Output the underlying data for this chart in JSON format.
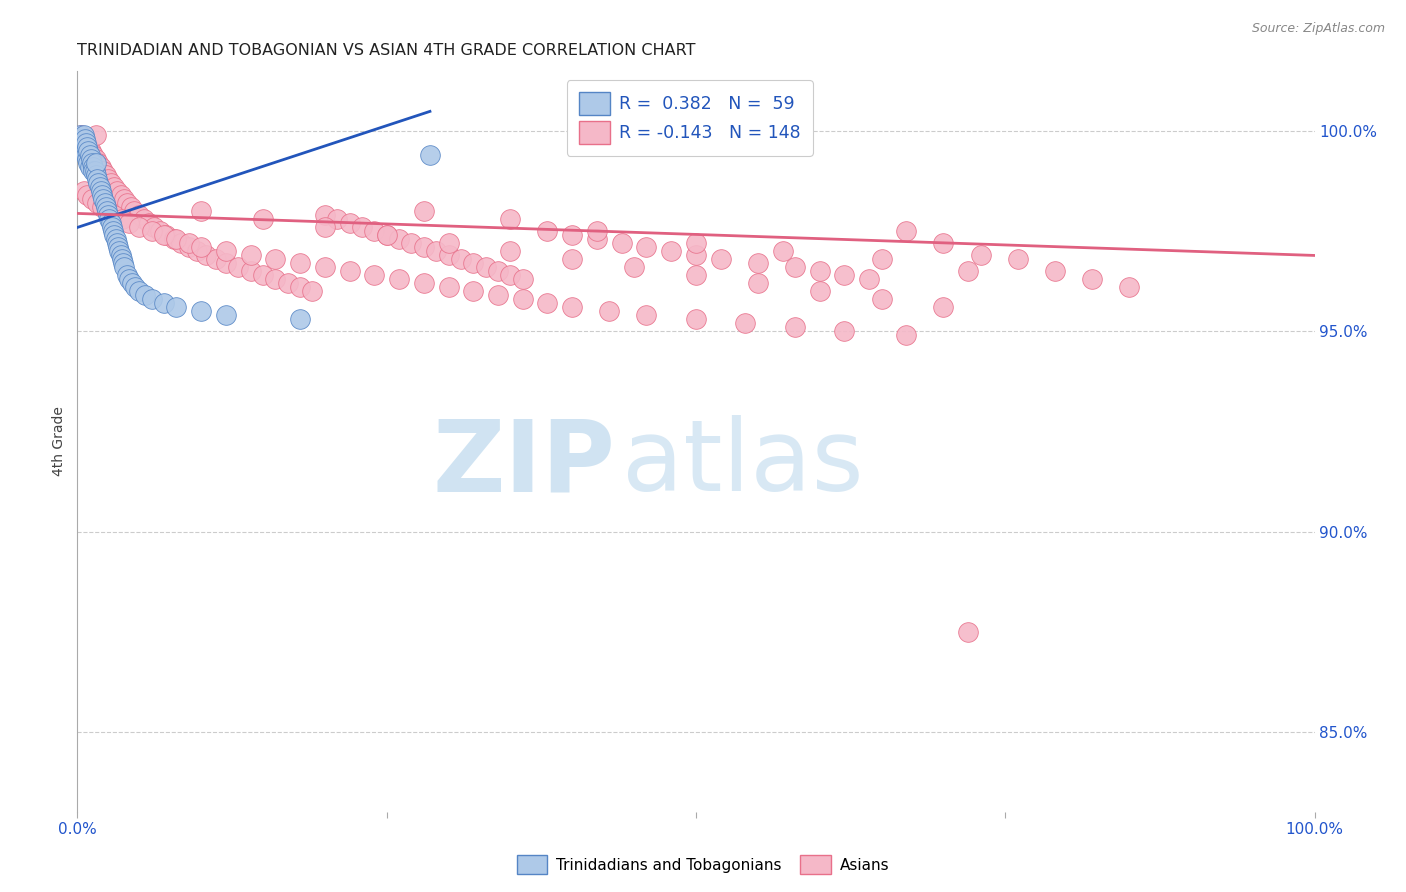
{
  "title": "TRINIDADIAN AND TOBAGONIAN VS ASIAN 4TH GRADE CORRELATION CHART",
  "source": "Source: ZipAtlas.com",
  "ylabel": "4th Grade",
  "r_blue": 0.382,
  "n_blue": 59,
  "r_pink": -0.143,
  "n_pink": 148,
  "legend_label_blue": "Trinidadians and Tobagonians",
  "legend_label_pink": "Asians",
  "blue_fill": "#aec9e8",
  "pink_fill": "#f5b8c8",
  "blue_edge": "#5585c5",
  "pink_edge": "#e8708a",
  "blue_line": "#2255bb",
  "pink_line": "#e06080",
  "axis_tick_color": "#2255cc",
  "title_color": "#222222",
  "source_color": "#888888",
  "ylabel_color": "#444444",
  "grid_color": "#cccccc",
  "xlim": [
    0.0,
    1.0
  ],
  "ylim": [
    0.83,
    1.015
  ],
  "ytick_vals": [
    1.0,
    0.95,
    0.9,
    0.85
  ],
  "ytick_labels": [
    "100.0%",
    "95.0%",
    "90.0%",
    "85.0%"
  ],
  "blue_trend_x": [
    0.0,
    0.285
  ],
  "blue_trend_y": [
    0.976,
    1.005
  ],
  "pink_trend_x": [
    0.0,
    1.0
  ],
  "pink_trend_y": [
    0.9795,
    0.969
  ],
  "blue_x": [
    0.002,
    0.003,
    0.004,
    0.004,
    0.005,
    0.005,
    0.006,
    0.006,
    0.007,
    0.007,
    0.008,
    0.008,
    0.009,
    0.009,
    0.01,
    0.01,
    0.011,
    0.012,
    0.013,
    0.013,
    0.014,
    0.015,
    0.015,
    0.016,
    0.017,
    0.018,
    0.019,
    0.02,
    0.021,
    0.022,
    0.023,
    0.024,
    0.025,
    0.026,
    0.027,
    0.028,
    0.029,
    0.03,
    0.031,
    0.032,
    0.033,
    0.034,
    0.035,
    0.036,
    0.037,
    0.038,
    0.04,
    0.042,
    0.044,
    0.047,
    0.05,
    0.055,
    0.06,
    0.07,
    0.08,
    0.1,
    0.12,
    0.18,
    0.285
  ],
  "blue_y": [
    0.999,
    0.998,
    0.997,
    0.996,
    0.999,
    0.997,
    0.998,
    0.995,
    0.997,
    0.994,
    0.996,
    0.993,
    0.995,
    0.992,
    0.994,
    0.991,
    0.993,
    0.992,
    0.991,
    0.99,
    0.99,
    0.989,
    0.992,
    0.988,
    0.987,
    0.986,
    0.985,
    0.984,
    0.983,
    0.982,
    0.981,
    0.98,
    0.979,
    0.978,
    0.977,
    0.976,
    0.975,
    0.974,
    0.973,
    0.972,
    0.971,
    0.97,
    0.969,
    0.968,
    0.967,
    0.966,
    0.964,
    0.963,
    0.962,
    0.961,
    0.96,
    0.959,
    0.958,
    0.957,
    0.956,
    0.955,
    0.954,
    0.953,
    0.994
  ],
  "pink_x": [
    0.003,
    0.004,
    0.005,
    0.005,
    0.006,
    0.007,
    0.008,
    0.008,
    0.009,
    0.01,
    0.011,
    0.012,
    0.013,
    0.014,
    0.015,
    0.015,
    0.016,
    0.017,
    0.018,
    0.019,
    0.02,
    0.021,
    0.022,
    0.023,
    0.025,
    0.027,
    0.03,
    0.032,
    0.035,
    0.038,
    0.04,
    0.043,
    0.046,
    0.05,
    0.054,
    0.058,
    0.062,
    0.067,
    0.072,
    0.078,
    0.084,
    0.09,
    0.097,
    0.104,
    0.112,
    0.12,
    0.13,
    0.14,
    0.15,
    0.16,
    0.17,
    0.18,
    0.19,
    0.2,
    0.21,
    0.22,
    0.23,
    0.24,
    0.25,
    0.26,
    0.27,
    0.28,
    0.29,
    0.3,
    0.31,
    0.32,
    0.33,
    0.34,
    0.35,
    0.36,
    0.38,
    0.4,
    0.42,
    0.44,
    0.46,
    0.48,
    0.5,
    0.52,
    0.55,
    0.58,
    0.6,
    0.62,
    0.64,
    0.67,
    0.7,
    0.73,
    0.76,
    0.79,
    0.82,
    0.85,
    0.1,
    0.15,
    0.2,
    0.25,
    0.3,
    0.35,
    0.4,
    0.45,
    0.5,
    0.55,
    0.6,
    0.65,
    0.7,
    0.28,
    0.35,
    0.42,
    0.5,
    0.57,
    0.65,
    0.72,
    0.005,
    0.008,
    0.012,
    0.016,
    0.02,
    0.025,
    0.03,
    0.036,
    0.042,
    0.05,
    0.06,
    0.07,
    0.08,
    0.09,
    0.1,
    0.12,
    0.14,
    0.16,
    0.18,
    0.2,
    0.22,
    0.24,
    0.26,
    0.28,
    0.3,
    0.32,
    0.34,
    0.36,
    0.38,
    0.4,
    0.43,
    0.46,
    0.5,
    0.54,
    0.58,
    0.62,
    0.67,
    0.72
  ],
  "pink_y": [
    0.999,
    0.998,
    0.998,
    0.997,
    0.997,
    0.997,
    0.996,
    0.996,
    0.996,
    0.995,
    0.995,
    0.994,
    0.994,
    0.993,
    0.993,
    0.999,
    0.992,
    0.992,
    0.991,
    0.991,
    0.99,
    0.99,
    0.989,
    0.989,
    0.988,
    0.987,
    0.986,
    0.985,
    0.984,
    0.983,
    0.982,
    0.981,
    0.98,
    0.979,
    0.978,
    0.977,
    0.976,
    0.975,
    0.974,
    0.973,
    0.972,
    0.971,
    0.97,
    0.969,
    0.968,
    0.967,
    0.966,
    0.965,
    0.964,
    0.963,
    0.962,
    0.961,
    0.96,
    0.979,
    0.978,
    0.977,
    0.976,
    0.975,
    0.974,
    0.973,
    0.972,
    0.971,
    0.97,
    0.969,
    0.968,
    0.967,
    0.966,
    0.965,
    0.964,
    0.963,
    0.975,
    0.974,
    0.973,
    0.972,
    0.971,
    0.97,
    0.969,
    0.968,
    0.967,
    0.966,
    0.965,
    0.964,
    0.963,
    0.975,
    0.972,
    0.969,
    0.968,
    0.965,
    0.963,
    0.961,
    0.98,
    0.978,
    0.976,
    0.974,
    0.972,
    0.97,
    0.968,
    0.966,
    0.964,
    0.962,
    0.96,
    0.958,
    0.956,
    0.98,
    0.978,
    0.975,
    0.972,
    0.97,
    0.968,
    0.965,
    0.985,
    0.984,
    0.983,
    0.982,
    0.981,
    0.98,
    0.979,
    0.978,
    0.977,
    0.976,
    0.975,
    0.974,
    0.973,
    0.972,
    0.971,
    0.97,
    0.969,
    0.968,
    0.967,
    0.966,
    0.965,
    0.964,
    0.963,
    0.962,
    0.961,
    0.96,
    0.959,
    0.958,
    0.957,
    0.956,
    0.955,
    0.954,
    0.953,
    0.952,
    0.951,
    0.95,
    0.949,
    0.875
  ]
}
